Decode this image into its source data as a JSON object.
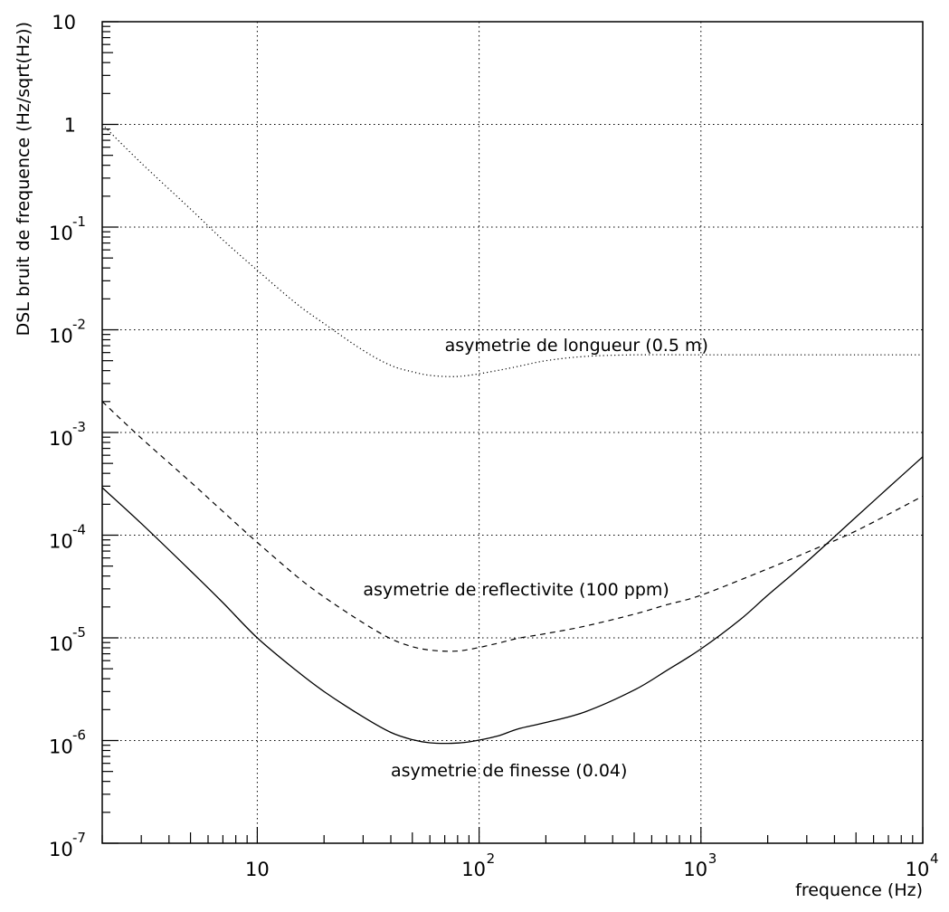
{
  "chart_data": {
    "type": "line",
    "title": "",
    "xlabel": "frequence (Hz)",
    "ylabel": "DSL bruit de frequence (Hz/sqrt(Hz))",
    "x_scale": "log",
    "y_scale": "log",
    "xlim": [
      2,
      10000
    ],
    "ylim": [
      1e-07,
      10
    ],
    "grid": true,
    "x_ticks": [
      {
        "value": 10,
        "base": "10",
        "exp": ""
      },
      {
        "value": 100,
        "base": "10",
        "exp": "2"
      },
      {
        "value": 1000,
        "base": "10",
        "exp": "3"
      },
      {
        "value": 10000,
        "base": "10",
        "exp": "4"
      }
    ],
    "y_ticks": [
      {
        "value": 10,
        "base": "10",
        "exp": ""
      },
      {
        "value": 1,
        "base": "1",
        "exp": ""
      },
      {
        "value": 0.1,
        "base": "10",
        "exp": "-1"
      },
      {
        "value": 0.01,
        "base": "10",
        "exp": "-2"
      },
      {
        "value": 0.001,
        "base": "10",
        "exp": "-3"
      },
      {
        "value": 0.0001,
        "base": "10",
        "exp": "-4"
      },
      {
        "value": 1e-05,
        "base": "10",
        "exp": "-5"
      },
      {
        "value": 1e-06,
        "base": "10",
        "exp": "-6"
      },
      {
        "value": 1e-07,
        "base": "10",
        "exp": "-7"
      }
    ],
    "series": [
      {
        "name": "",
        "style": "dotted",
        "x": [
          2,
          3,
          5,
          7,
          10,
          15,
          20,
          30,
          40,
          50,
          60,
          75,
          90,
          120,
          150,
          200,
          300,
          500,
          1000,
          2000,
          5000,
          10000
        ],
        "y": [
          1.0,
          0.42,
          0.15,
          0.075,
          0.038,
          0.018,
          0.0115,
          0.0063,
          0.0045,
          0.0039,
          0.0036,
          0.0035,
          0.0036,
          0.004,
          0.0044,
          0.005,
          0.0055,
          0.0057,
          0.0057,
          0.0057,
          0.0057,
          0.0057
        ]
      },
      {
        "name": "",
        "style": "dashed",
        "x": [
          2,
          3,
          5,
          7,
          10,
          15,
          20,
          30,
          40,
          50,
          60,
          75,
          90,
          120,
          150,
          200,
          300,
          500,
          700,
          1000,
          2000,
          3000,
          5000,
          10000
        ],
        "y": [
          0.002,
          0.00088,
          0.00033,
          0.00017,
          8.5e-05,
          4e-05,
          2.5e-05,
          1.4e-05,
          9.8e-06,
          8.2e-06,
          7.6e-06,
          7.4e-06,
          7.7e-06,
          8.8e-06,
          9.9e-06,
          1.1e-05,
          1.3e-05,
          1.7e-05,
          2.1e-05,
          2.6e-05,
          4.7e-05,
          6.8e-05,
          0.00011,
          0.00024
        ]
      },
      {
        "name": "",
        "style": "solid",
        "x": [
          2,
          3,
          5,
          7,
          10,
          15,
          20,
          30,
          40,
          50,
          60,
          75,
          90,
          120,
          150,
          200,
          300,
          500,
          700,
          1000,
          1500,
          2000,
          3000,
          5000,
          7000,
          10000
        ],
        "y": [
          0.00029,
          0.00013,
          4.5e-05,
          2.2e-05,
          1e-05,
          4.8e-06,
          3e-06,
          1.7e-06,
          1.2e-06,
          1.02e-06,
          9.5e-07,
          9.4e-07,
          9.7e-07,
          1.1e-06,
          1.3e-06,
          1.5e-06,
          1.9e-06,
          3.1e-06,
          4.8e-06,
          7.8e-06,
          1.5e-05,
          2.6e-05,
          5.5e-05,
          0.00015,
          0.00029,
          0.00058
        ]
      }
    ],
    "annotations": [
      {
        "text": "asymetrie de longueur (0.5 m)",
        "x": 70,
        "y": 0.0062
      },
      {
        "text": "asymetrie de reflectivite (100 ppm)",
        "x": 30,
        "y": 2.6e-05
      },
      {
        "text": "asymetrie de finesse (0.04)",
        "x": 40,
        "y": 4.5e-07
      }
    ]
  }
}
